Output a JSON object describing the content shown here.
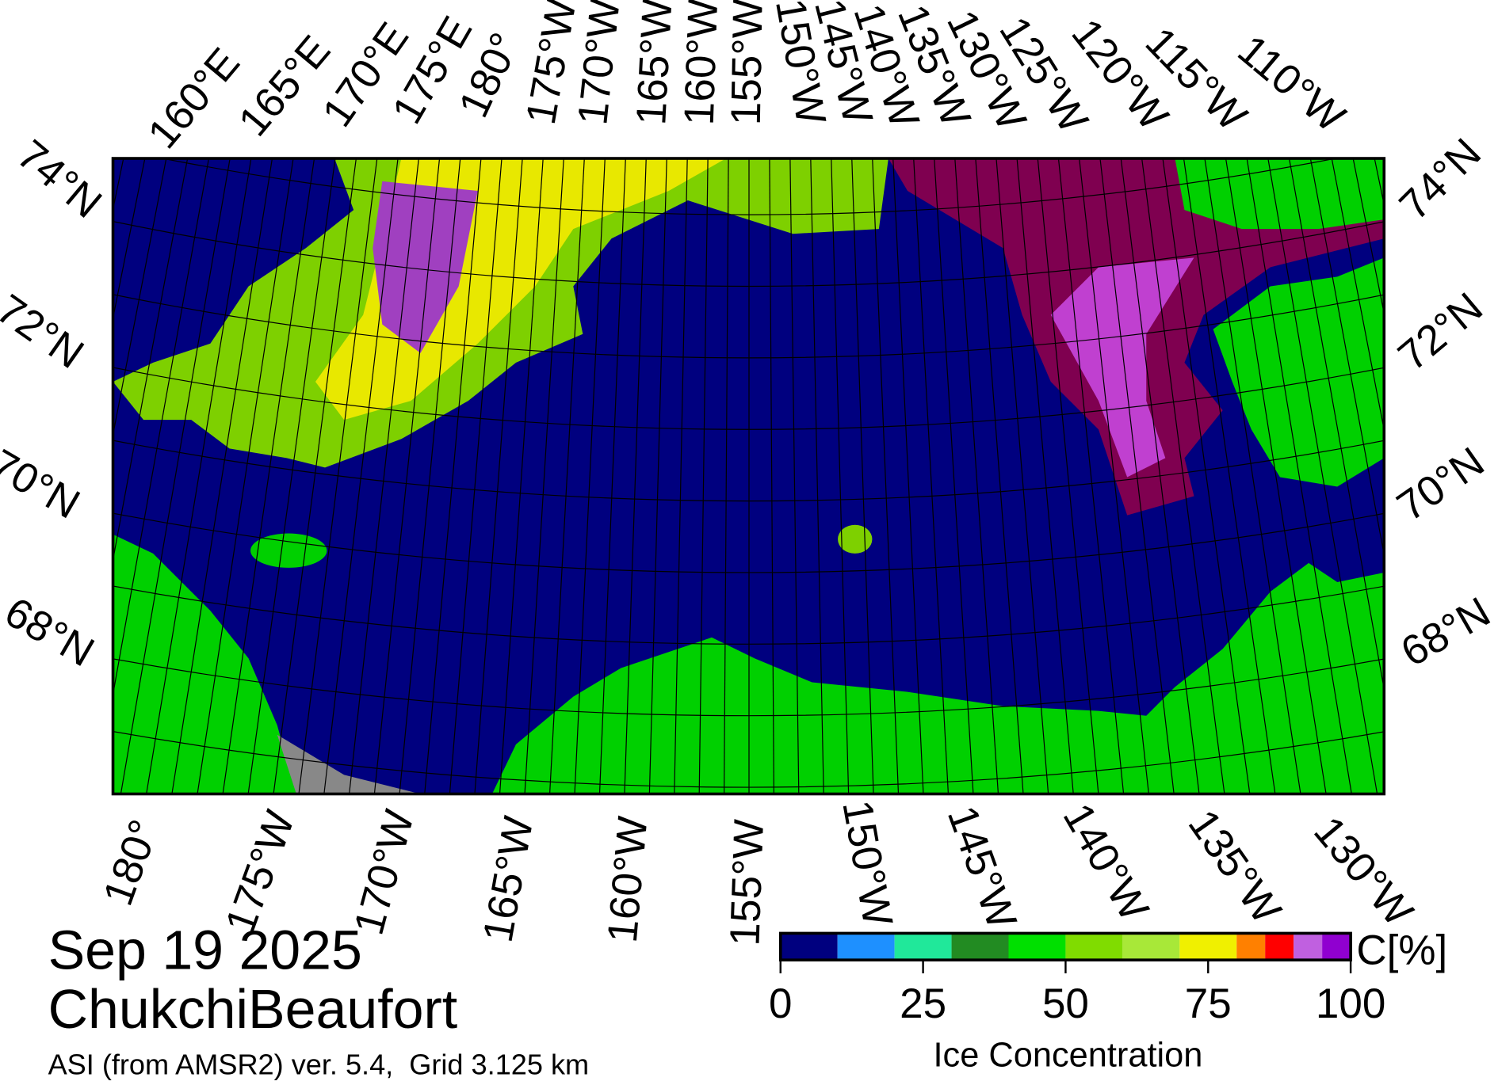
{
  "map": {
    "date": "Sep 19 2025",
    "region": "ChukchiBeaufort",
    "caption": "ASI (from AMSR2) ver. 5.4,  Grid 3.125 km",
    "top_longitude_labels": [
      "160°E",
      "165°E",
      "170°E",
      "175°E",
      "180°",
      "175°W",
      "170°W",
      "165°W",
      "160°W",
      "155°W",
      "150°W",
      "145°W",
      "140°W",
      "135°W",
      "130°W",
      "125°W",
      "120°W",
      "115°W",
      "110°W"
    ],
    "bottom_longitude_labels": [
      "180°",
      "175°W",
      "170°W",
      "165°W",
      "160°W",
      "155°W",
      "150°W",
      "145°W",
      "140°W",
      "135°W",
      "130°W"
    ],
    "left_latitude_labels": [
      "74°N",
      "72°N",
      "70°N",
      "68°N"
    ],
    "right_latitude_labels": [
      "74°N",
      "72°N",
      "70°N",
      "68°N"
    ]
  },
  "colorbar": {
    "label": "Ice Concentration",
    "unit_label": "C[%]",
    "lim": [
      0,
      100
    ],
    "bounds": [
      0,
      10,
      20,
      30,
      40,
      50,
      60,
      70,
      80,
      85,
      90,
      95,
      100
    ],
    "colors": [
      "#00007f",
      "#1e90ff",
      "#20e89a",
      "#228b22",
      "#00e000",
      "#80dc00",
      "#a8e838",
      "#f0f000",
      "#ff8000",
      "#ff0000",
      "#c060e0",
      "#9000d0"
    ],
    "ticks": [
      0,
      25,
      50,
      75,
      100
    ]
  }
}
